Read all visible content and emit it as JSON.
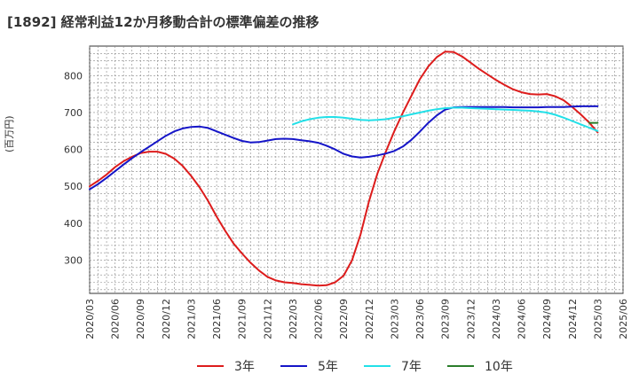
{
  "chart_data": {
    "type": "line",
    "title": "[1892]  経常利益12か月移動合計の標準偏差の推移",
    "ylabel": "(百万円)",
    "xlabel": "",
    "ylim": [
      210,
      880
    ],
    "yticks": [
      300,
      400,
      500,
      600,
      700,
      800
    ],
    "xlim": [
      "2020-03",
      "2025-06"
    ],
    "xticks": [
      "2020/03",
      "2020/06",
      "2020/09",
      "2020/12",
      "2021/03",
      "2021/06",
      "2021/09",
      "2021/12",
      "2022/03",
      "2022/06",
      "2022/09",
      "2022/12",
      "2023/03",
      "2023/06",
      "2023/09",
      "2023/12",
      "2024/03",
      "2024/06",
      "2024/09",
      "2024/12",
      "2025/03",
      "2025/06"
    ],
    "grid": true,
    "legend_position": "bottom",
    "series": [
      {
        "name": "3年",
        "color": "#dd1c1c",
        "points": [
          [
            "2020-03",
            500
          ],
          [
            "2020-04",
            515
          ],
          [
            "2020-05",
            532
          ],
          [
            "2020-06",
            552
          ],
          [
            "2020-07",
            568
          ],
          [
            "2020-08",
            580
          ],
          [
            "2020-09",
            590
          ],
          [
            "2020-10",
            594
          ],
          [
            "2020-11",
            594
          ],
          [
            "2020-12",
            588
          ],
          [
            "2021-01",
            575
          ],
          [
            "2021-02",
            555
          ],
          [
            "2021-03",
            528
          ],
          [
            "2021-04",
            497
          ],
          [
            "2021-05",
            460
          ],
          [
            "2021-06",
            418
          ],
          [
            "2021-07",
            380
          ],
          [
            "2021-08",
            345
          ],
          [
            "2021-09",
            318
          ],
          [
            "2021-10",
            293
          ],
          [
            "2021-11",
            272
          ],
          [
            "2021-12",
            255
          ],
          [
            "2022-01",
            245
          ],
          [
            "2022-02",
            240
          ],
          [
            "2022-03",
            238
          ],
          [
            "2022-04",
            235
          ],
          [
            "2022-05",
            233
          ],
          [
            "2022-06",
            231
          ],
          [
            "2022-07",
            232
          ],
          [
            "2022-08",
            240
          ],
          [
            "2022-09",
            258
          ],
          [
            "2022-10",
            300
          ],
          [
            "2022-11",
            370
          ],
          [
            "2022-12",
            460
          ],
          [
            "2023-01",
            535
          ],
          [
            "2023-02",
            595
          ],
          [
            "2023-03",
            650
          ],
          [
            "2023-04",
            700
          ],
          [
            "2023-05",
            745
          ],
          [
            "2023-06",
            790
          ],
          [
            "2023-07",
            825
          ],
          [
            "2023-08",
            850
          ],
          [
            "2023-09",
            865
          ],
          [
            "2023-10",
            864
          ],
          [
            "2023-11",
            852
          ],
          [
            "2023-12",
            835
          ],
          [
            "2024-01",
            818
          ],
          [
            "2024-02",
            803
          ],
          [
            "2024-03",
            788
          ],
          [
            "2024-04",
            775
          ],
          [
            "2024-05",
            763
          ],
          [
            "2024-06",
            755
          ],
          [
            "2024-07",
            750
          ],
          [
            "2024-08",
            749
          ],
          [
            "2024-09",
            750
          ],
          [
            "2024-10",
            744
          ],
          [
            "2024-11",
            733
          ],
          [
            "2024-12",
            715
          ],
          [
            "2025-01",
            695
          ],
          [
            "2025-02",
            673
          ],
          [
            "2025-03",
            646
          ]
        ]
      },
      {
        "name": "5年",
        "color": "#1515c8",
        "points": [
          [
            "2020-03",
            492
          ],
          [
            "2020-04",
            506
          ],
          [
            "2020-05",
            523
          ],
          [
            "2020-06",
            541
          ],
          [
            "2020-07",
            559
          ],
          [
            "2020-08",
            576
          ],
          [
            "2020-09",
            592
          ],
          [
            "2020-10",
            607
          ],
          [
            "2020-11",
            622
          ],
          [
            "2020-12",
            637
          ],
          [
            "2021-01",
            649
          ],
          [
            "2021-02",
            657
          ],
          [
            "2021-03",
            661
          ],
          [
            "2021-04",
            662
          ],
          [
            "2021-05",
            658
          ],
          [
            "2021-06",
            649
          ],
          [
            "2021-07",
            640
          ],
          [
            "2021-08",
            631
          ],
          [
            "2021-09",
            623
          ],
          [
            "2021-10",
            619
          ],
          [
            "2021-11",
            620
          ],
          [
            "2021-12",
            624
          ],
          [
            "2022-01",
            628
          ],
          [
            "2022-02",
            629
          ],
          [
            "2022-03",
            628
          ],
          [
            "2022-04",
            625
          ],
          [
            "2022-05",
            622
          ],
          [
            "2022-06",
            618
          ],
          [
            "2022-07",
            610
          ],
          [
            "2022-08",
            600
          ],
          [
            "2022-09",
            588
          ],
          [
            "2022-10",
            581
          ],
          [
            "2022-11",
            578
          ],
          [
            "2022-12",
            580
          ],
          [
            "2023-01",
            584
          ],
          [
            "2023-02",
            589
          ],
          [
            "2023-03",
            596
          ],
          [
            "2023-04",
            608
          ],
          [
            "2023-05",
            626
          ],
          [
            "2023-06",
            648
          ],
          [
            "2023-07",
            672
          ],
          [
            "2023-08",
            692
          ],
          [
            "2023-09",
            708
          ],
          [
            "2023-10",
            714
          ],
          [
            "2023-11",
            715
          ],
          [
            "2023-12",
            715
          ],
          [
            "2024-01",
            715
          ],
          [
            "2024-02",
            715
          ],
          [
            "2024-03",
            715
          ],
          [
            "2024-04",
            715
          ],
          [
            "2024-05",
            714
          ],
          [
            "2024-06",
            714
          ],
          [
            "2024-07",
            714
          ],
          [
            "2024-08",
            714
          ],
          [
            "2024-09",
            715
          ],
          [
            "2024-10",
            715
          ],
          [
            "2024-11",
            715
          ],
          [
            "2024-12",
            716
          ],
          [
            "2025-01",
            717
          ],
          [
            "2025-02",
            717
          ],
          [
            "2025-03",
            717
          ]
        ]
      },
      {
        "name": "7年",
        "color": "#22e0e8",
        "points": [
          [
            "2022-03",
            668
          ],
          [
            "2022-04",
            676
          ],
          [
            "2022-05",
            682
          ],
          [
            "2022-06",
            686
          ],
          [
            "2022-07",
            688
          ],
          [
            "2022-08",
            688
          ],
          [
            "2022-09",
            686
          ],
          [
            "2022-10",
            683
          ],
          [
            "2022-11",
            680
          ],
          [
            "2022-12",
            679
          ],
          [
            "2023-01",
            680
          ],
          [
            "2023-02",
            682
          ],
          [
            "2023-03",
            686
          ],
          [
            "2023-04",
            690
          ],
          [
            "2023-05",
            695
          ],
          [
            "2023-06",
            700
          ],
          [
            "2023-07",
            705
          ],
          [
            "2023-08",
            709
          ],
          [
            "2023-09",
            712
          ],
          [
            "2023-10",
            713
          ],
          [
            "2023-11",
            713
          ],
          [
            "2023-12",
            712
          ],
          [
            "2024-01",
            711
          ],
          [
            "2024-02",
            710
          ],
          [
            "2024-03",
            709
          ],
          [
            "2024-04",
            708
          ],
          [
            "2024-05",
            707
          ],
          [
            "2024-06",
            706
          ],
          [
            "2024-07",
            705
          ],
          [
            "2024-08",
            703
          ],
          [
            "2024-09",
            700
          ],
          [
            "2024-10",
            694
          ],
          [
            "2024-11",
            686
          ],
          [
            "2024-12",
            677
          ],
          [
            "2025-01",
            668
          ],
          [
            "2025-02",
            659
          ],
          [
            "2025-03",
            650
          ]
        ]
      },
      {
        "name": "10年",
        "color": "#2a7d2a",
        "points": [
          [
            "2025-02",
            672
          ],
          [
            "2025-03",
            672
          ]
        ]
      }
    ]
  }
}
